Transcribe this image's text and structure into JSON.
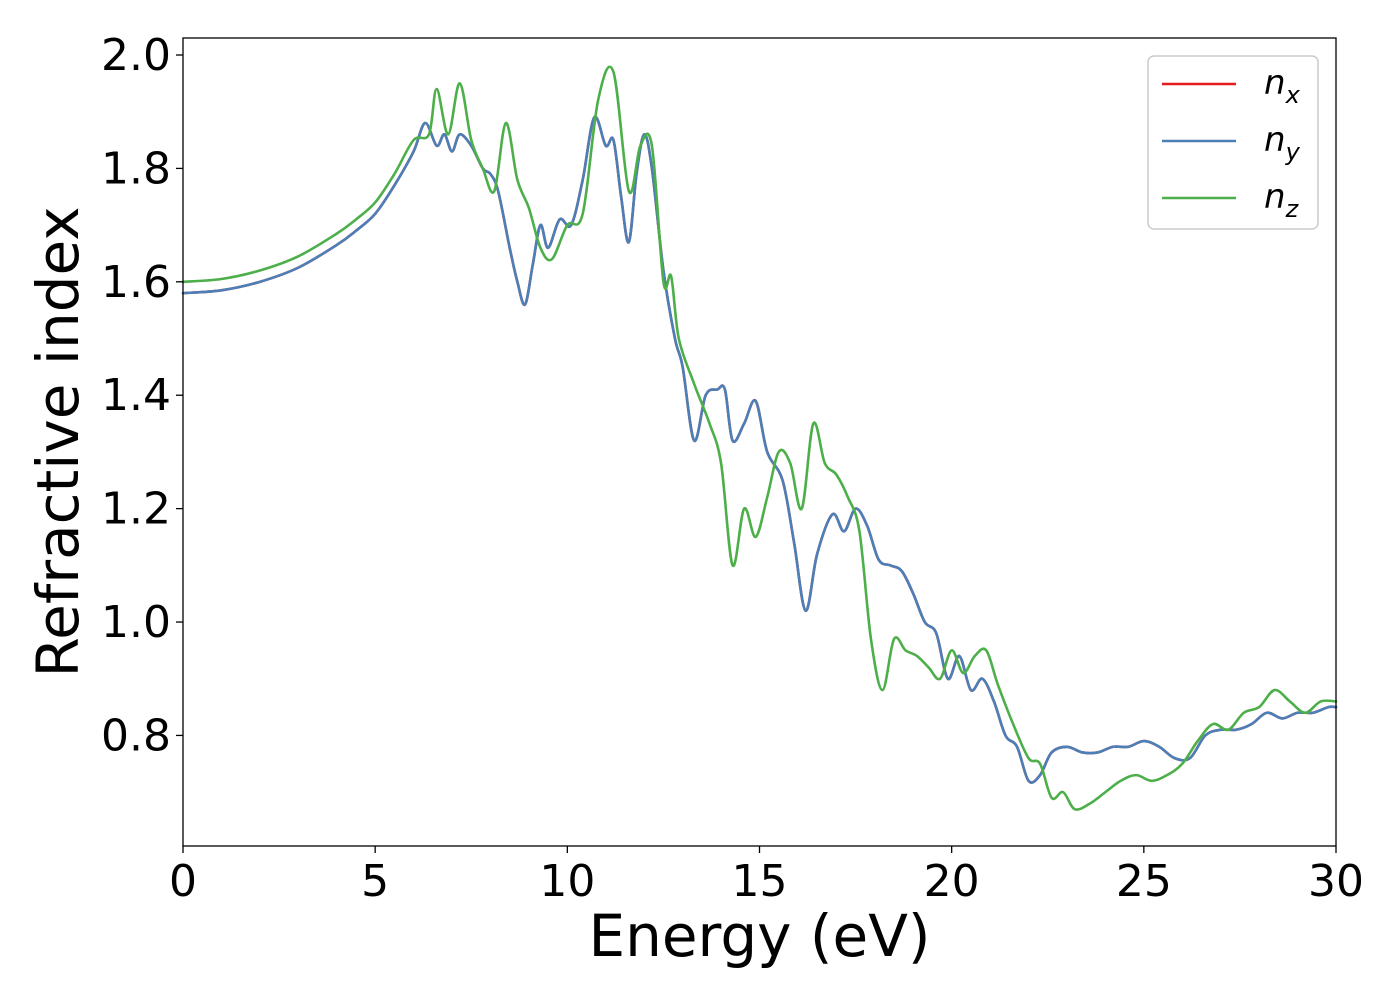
{
  "chart_data": {
    "type": "line",
    "title": "",
    "xlabel": "Energy (eV)",
    "ylabel": "Refractive index",
    "xlim": [
      0,
      30
    ],
    "ylim": [
      0.605,
      2.03
    ],
    "xticks": [
      0,
      5,
      10,
      15,
      20,
      25,
      30
    ],
    "xtick_labels": [
      "0",
      "5",
      "10",
      "15",
      "20",
      "25",
      "30"
    ],
    "yticks": [
      0.8,
      1.0,
      1.2,
      1.4,
      1.6,
      1.8,
      2.0
    ],
    "ytick_labels": [
      "0.8",
      "1.0",
      "1.2",
      "1.4",
      "1.6",
      "1.8",
      "2.0"
    ],
    "grid": false,
    "legend_position": "top-right",
    "series": [
      {
        "name": "n",
        "subscript": "x",
        "color": "#e41a1c",
        "x": [
          0,
          1,
          2,
          3,
          4,
          4.5,
          5,
          5.5,
          6,
          6.3,
          6.6,
          6.8,
          7,
          7.2,
          7.5,
          7.8,
          8,
          8.2,
          8.5,
          8.7,
          8.9,
          9.1,
          9.3,
          9.5,
          9.8,
          10.1,
          10.4,
          10.7,
          11,
          11.2,
          11.4,
          11.6,
          11.8,
          12,
          12.2,
          12.5,
          12.8,
          13,
          13.3,
          13.6,
          13.9,
          14.1,
          14.3,
          14.6,
          14.9,
          15.2,
          15.6,
          15.9,
          16.2,
          16.5,
          16.9,
          17.2,
          17.5,
          17.8,
          18.1,
          18.4,
          18.7,
          19,
          19.3,
          19.6,
          19.9,
          20.2,
          20.5,
          20.8,
          21.1,
          21.4,
          21.7,
          22,
          22.3,
          22.6,
          23,
          23.4,
          23.8,
          24.2,
          24.6,
          25,
          25.4,
          25.8,
          26.2,
          26.6,
          27,
          27.4,
          27.8,
          28.2,
          28.6,
          29,
          29.4,
          29.8,
          30
        ],
        "y": [
          1.58,
          1.585,
          1.6,
          1.625,
          1.665,
          1.69,
          1.72,
          1.77,
          1.83,
          1.88,
          1.84,
          1.86,
          1.83,
          1.86,
          1.84,
          1.8,
          1.79,
          1.76,
          1.66,
          1.6,
          1.56,
          1.63,
          1.7,
          1.66,
          1.71,
          1.7,
          1.78,
          1.89,
          1.84,
          1.85,
          1.75,
          1.67,
          1.79,
          1.86,
          1.8,
          1.62,
          1.5,
          1.45,
          1.32,
          1.4,
          1.41,
          1.41,
          1.32,
          1.35,
          1.39,
          1.3,
          1.25,
          1.14,
          1.02,
          1.12,
          1.19,
          1.16,
          1.2,
          1.17,
          1.11,
          1.1,
          1.09,
          1.05,
          1.0,
          0.98,
          0.9,
          0.94,
          0.88,
          0.9,
          0.86,
          0.8,
          0.78,
          0.72,
          0.73,
          0.77,
          0.78,
          0.77,
          0.77,
          0.78,
          0.78,
          0.79,
          0.78,
          0.76,
          0.76,
          0.8,
          0.81,
          0.81,
          0.82,
          0.84,
          0.83,
          0.84,
          0.84,
          0.85,
          0.85
        ]
      },
      {
        "name": "n",
        "subscript": "y",
        "color": "#4a7fb8",
        "x": [
          0,
          1,
          2,
          3,
          4,
          4.5,
          5,
          5.5,
          6,
          6.3,
          6.6,
          6.8,
          7,
          7.2,
          7.5,
          7.8,
          8,
          8.2,
          8.5,
          8.7,
          8.9,
          9.1,
          9.3,
          9.5,
          9.8,
          10.1,
          10.4,
          10.7,
          11,
          11.2,
          11.4,
          11.6,
          11.8,
          12,
          12.2,
          12.5,
          12.8,
          13,
          13.3,
          13.6,
          13.9,
          14.1,
          14.3,
          14.6,
          14.9,
          15.2,
          15.6,
          15.9,
          16.2,
          16.5,
          16.9,
          17.2,
          17.5,
          17.8,
          18.1,
          18.4,
          18.7,
          19,
          19.3,
          19.6,
          19.9,
          20.2,
          20.5,
          20.8,
          21.1,
          21.4,
          21.7,
          22,
          22.3,
          22.6,
          23,
          23.4,
          23.8,
          24.2,
          24.6,
          25,
          25.4,
          25.8,
          26.2,
          26.6,
          27,
          27.4,
          27.8,
          28.2,
          28.6,
          29,
          29.4,
          29.8,
          30
        ],
        "y": [
          1.58,
          1.585,
          1.6,
          1.625,
          1.665,
          1.69,
          1.72,
          1.77,
          1.83,
          1.88,
          1.84,
          1.86,
          1.83,
          1.86,
          1.84,
          1.8,
          1.79,
          1.76,
          1.66,
          1.6,
          1.56,
          1.63,
          1.7,
          1.66,
          1.71,
          1.7,
          1.78,
          1.89,
          1.84,
          1.85,
          1.75,
          1.67,
          1.79,
          1.86,
          1.8,
          1.62,
          1.5,
          1.45,
          1.32,
          1.4,
          1.41,
          1.41,
          1.32,
          1.35,
          1.39,
          1.3,
          1.25,
          1.14,
          1.02,
          1.12,
          1.19,
          1.16,
          1.2,
          1.17,
          1.11,
          1.1,
          1.09,
          1.05,
          1.0,
          0.98,
          0.9,
          0.94,
          0.88,
          0.9,
          0.86,
          0.8,
          0.78,
          0.72,
          0.73,
          0.77,
          0.78,
          0.77,
          0.77,
          0.78,
          0.78,
          0.79,
          0.78,
          0.76,
          0.76,
          0.8,
          0.81,
          0.81,
          0.82,
          0.84,
          0.83,
          0.84,
          0.84,
          0.85,
          0.85
        ]
      },
      {
        "name": "n",
        "subscript": "z",
        "color": "#4daf4a",
        "x": [
          0,
          1,
          2,
          3,
          4,
          4.5,
          5,
          5.5,
          6,
          6.4,
          6.6,
          6.9,
          7.2,
          7.5,
          7.8,
          8.1,
          8.4,
          8.7,
          9,
          9.3,
          9.6,
          10,
          10.4,
          10.8,
          11.2,
          11.6,
          11.9,
          12.2,
          12.5,
          12.7,
          12.9,
          13.3,
          13.7,
          14,
          14.3,
          14.6,
          14.9,
          15.2,
          15.5,
          15.8,
          16.1,
          16.4,
          16.7,
          17,
          17.3,
          17.6,
          17.9,
          18.2,
          18.5,
          18.8,
          19.1,
          19.4,
          19.7,
          20,
          20.3,
          20.6,
          20.9,
          21.2,
          21.6,
          22,
          22.3,
          22.6,
          22.9,
          23.2,
          23.6,
          24,
          24.4,
          24.8,
          25.2,
          25.6,
          26,
          26.4,
          26.8,
          27.2,
          27.6,
          28,
          28.4,
          28.8,
          29.2,
          29.6,
          30
        ],
        "y": [
          1.6,
          1.605,
          1.62,
          1.645,
          1.685,
          1.71,
          1.74,
          1.79,
          1.85,
          1.86,
          1.94,
          1.86,
          1.95,
          1.85,
          1.8,
          1.76,
          1.88,
          1.78,
          1.73,
          1.66,
          1.64,
          1.7,
          1.72,
          1.92,
          1.97,
          1.76,
          1.84,
          1.84,
          1.6,
          1.61,
          1.5,
          1.42,
          1.35,
          1.28,
          1.1,
          1.2,
          1.15,
          1.22,
          1.3,
          1.28,
          1.2,
          1.35,
          1.28,
          1.26,
          1.22,
          1.16,
          0.97,
          0.88,
          0.97,
          0.95,
          0.94,
          0.92,
          0.9,
          0.95,
          0.91,
          0.94,
          0.95,
          0.89,
          0.82,
          0.76,
          0.75,
          0.69,
          0.7,
          0.67,
          0.68,
          0.7,
          0.72,
          0.73,
          0.72,
          0.73,
          0.75,
          0.79,
          0.82,
          0.81,
          0.84,
          0.85,
          0.88,
          0.86,
          0.84,
          0.86,
          0.86
        ]
      }
    ]
  }
}
